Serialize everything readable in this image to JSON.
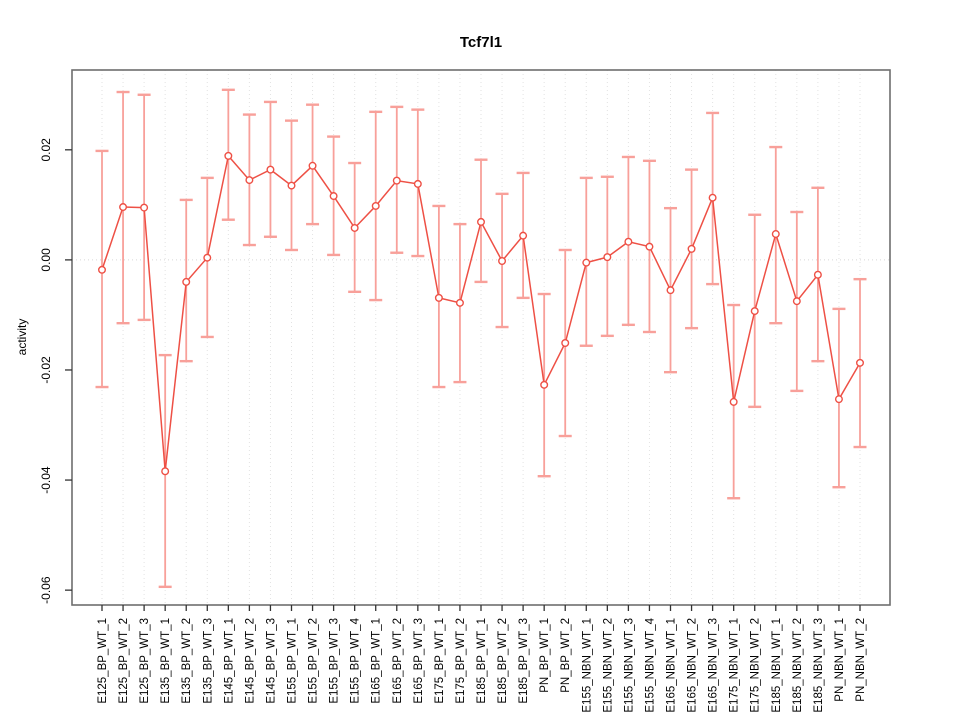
{
  "chart_data": {
    "type": "line",
    "title": "Tcf7l1",
    "xlabel": "",
    "ylabel": "activity",
    "legend": "none",
    "grid": {
      "vertical_dotted_per_category": true,
      "zero_line_dotted": true,
      "horizontal_gridlines": false
    },
    "categories": [
      "E125_BP_WT_1",
      "E125_BP_WT_2",
      "E125_BP_WT_3",
      "E135_BP_WT_1",
      "E135_BP_WT_2",
      "E135_BP_WT_3",
      "E145_BP_WT_1",
      "E145_BP_WT_2",
      "E145_BP_WT_3",
      "E155_BP_WT_1",
      "E155_BP_WT_2",
      "E155_BP_WT_3",
      "E155_BP_WT_4",
      "E165_BP_WT_1",
      "E165_BP_WT_2",
      "E165_BP_WT_3",
      "E175_BP_WT_1",
      "E175_BP_WT_2",
      "E185_BP_WT_1",
      "E185_BP_WT_2",
      "E185_BP_WT_3",
      "PN_BP_WT_1",
      "PN_BP_WT_2",
      "E155_NBN_WT_1",
      "E155_NBN_WT_2",
      "E155_NBN_WT_3",
      "E155_NBN_WT_4",
      "E165_NBN_WT_1",
      "E165_NBN_WT_2",
      "E165_NBN_WT_3",
      "E175_NBN_WT_1",
      "E175_NBN_WT_2",
      "E185_NBN_WT_1",
      "E185_NBN_WT_2",
      "E185_NBN_WT_3",
      "PN_NBN_WT_1",
      "PN_NBN_WT_2"
    ],
    "series": [
      {
        "name": "activity",
        "marker": "open-circle",
        "values": [
          -0.0018,
          0.0096,
          0.0095,
          -0.0384,
          -0.004,
          0.0004,
          0.0189,
          0.0145,
          0.0164,
          0.0135,
          0.0171,
          0.0116,
          0.0058,
          0.0098,
          0.0144,
          0.0138,
          -0.0069,
          -0.0078,
          0.0069,
          -0.0002,
          0.0044,
          -0.0227,
          -0.0151,
          -0.0005,
          0.0005,
          0.0033,
          0.0024,
          -0.0055,
          0.002,
          0.0113,
          -0.0258,
          -0.0093,
          0.0047,
          -0.0075,
          -0.0027,
          -0.0253,
          -0.0187
        ],
        "upper": [
          0.0198,
          0.0305,
          0.03,
          -0.0173,
          0.0109,
          0.0149,
          0.0309,
          0.0264,
          0.0287,
          0.0253,
          0.0282,
          0.0224,
          0.0176,
          0.0269,
          0.0278,
          0.0273,
          0.0098,
          0.0065,
          0.0182,
          0.012,
          0.0158,
          -0.0062,
          0.0018,
          0.0149,
          0.0151,
          0.0187,
          0.018,
          0.0094,
          0.0164,
          0.0267,
          -0.0082,
          0.0082,
          0.0205,
          0.0087,
          0.0131,
          -0.0089,
          -0.0035
        ],
        "lower": [
          -0.0231,
          -0.0115,
          -0.0109,
          -0.0594,
          -0.0184,
          -0.014,
          0.0073,
          0.0027,
          0.0042,
          0.0018,
          0.0065,
          0.0009,
          -0.0058,
          -0.0073,
          0.0013,
          0.0007,
          -0.0231,
          -0.0222,
          -0.004,
          -0.0122,
          -0.0069,
          -0.0393,
          -0.032,
          -0.0156,
          -0.0138,
          -0.0118,
          -0.0131,
          -0.0204,
          -0.0124,
          -0.0044,
          -0.0433,
          -0.0267,
          -0.0115,
          -0.0238,
          -0.0184,
          -0.0413,
          -0.034
        ]
      }
    ],
    "yticks": [
      {
        "label": "0.02",
        "value": 0.02
      },
      {
        "label": "0.00",
        "value": 0.0
      },
      {
        "label": "-0.02",
        "value": -0.02
      },
      {
        "label": "-0.04",
        "value": -0.04
      },
      {
        "label": "-0.06",
        "value": -0.06
      }
    ],
    "ylim": [
      -0.0627,
      0.0345
    ],
    "colors": {
      "point_line": "#ee5045",
      "error_bar": "#f8a09a",
      "grid_line": "#e2e2e2",
      "zero_line": "#d8d8d8",
      "axis_box": "#6e6e6e",
      "tick": "#333333",
      "text": "#000000",
      "background": "#ffffff"
    }
  }
}
